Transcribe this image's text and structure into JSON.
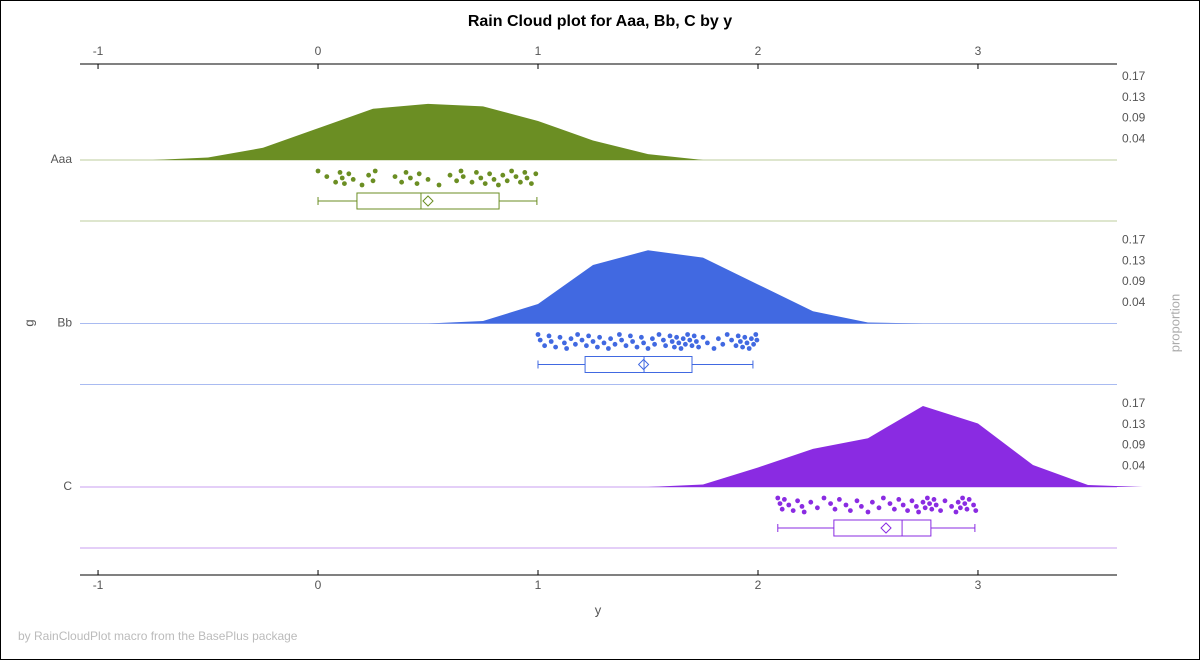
{
  "chart_data": {
    "type": "raincloud",
    "title": "Rain Cloud plot for Aaa, Bb, C by y",
    "xlabel": "y",
    "ylabel": "g",
    "y2label": "proportion",
    "footnote": "by RainCloudPlot macro from the BasePlus package",
    "xlim": [
      -1.082,
      3.632
    ],
    "xticks": [
      -1,
      0,
      1,
      2,
      3
    ],
    "ylim": [
      0,
      0.2
    ],
    "yticks": [
      {
        "value": 0.0425,
        "label": "0.04"
      },
      {
        "value": 0.085,
        "label": "0.09"
      },
      {
        "value": 0.1275,
        "label": "0.13"
      },
      {
        "value": 0.17,
        "label": "0.17"
      }
    ],
    "series": [
      {
        "name": "Aaa",
        "color": "#6b8e23",
        "density_x": [
          -0.75,
          -0.5,
          -0.25,
          0,
          0.25,
          0.5,
          0.75,
          1.0,
          1.25,
          1.5,
          1.75
        ],
        "density_values": [
          0,
          0.005,
          0.025,
          0.065,
          0.105,
          0.115,
          0.11,
          0.08,
          0.04,
          0.012,
          0
        ],
        "points": [
          0.0,
          0.04,
          0.08,
          0.1,
          0.11,
          0.12,
          0.14,
          0.16,
          0.2,
          0.23,
          0.25,
          0.26,
          0.35,
          0.38,
          0.4,
          0.42,
          0.45,
          0.46,
          0.5,
          0.55,
          0.6,
          0.63,
          0.65,
          0.66,
          0.7,
          0.72,
          0.74,
          0.76,
          0.78,
          0.8,
          0.82,
          0.84,
          0.86,
          0.88,
          0.9,
          0.92,
          0.94,
          0.95,
          0.97,
          0.99
        ],
        "box": {
          "min": 0,
          "q1": 0.177,
          "median": 0.468,
          "mean": 0.5,
          "q3": 0.823,
          "max": 0.995
        }
      },
      {
        "name": "Bb",
        "color": "#4169e1",
        "density_x": [
          0.5,
          0.75,
          1.0,
          1.25,
          1.5,
          1.75,
          2.0,
          2.25,
          2.5,
          2.75
        ],
        "density_values": [
          0,
          0.005,
          0.04,
          0.12,
          0.15,
          0.135,
          0.08,
          0.025,
          0.002,
          0
        ],
        "points": [
          1.0,
          1.01,
          1.03,
          1.05,
          1.06,
          1.08,
          1.1,
          1.12,
          1.13,
          1.15,
          1.17,
          1.18,
          1.2,
          1.22,
          1.23,
          1.25,
          1.27,
          1.28,
          1.3,
          1.32,
          1.33,
          1.35,
          1.37,
          1.38,
          1.4,
          1.42,
          1.43,
          1.45,
          1.47,
          1.48,
          1.5,
          1.52,
          1.53,
          1.55,
          1.57,
          1.58,
          1.6,
          1.61,
          1.62,
          1.63,
          1.64,
          1.65,
          1.66,
          1.67,
          1.68,
          1.69,
          1.7,
          1.71,
          1.72,
          1.73,
          1.75,
          1.77,
          1.8,
          1.82,
          1.84,
          1.86,
          1.88,
          1.9,
          1.91,
          1.92,
          1.93,
          1.94,
          1.95,
          1.96,
          1.97,
          1.98,
          1.99,
          1.995
        ],
        "box": {
          "min": 1.0,
          "q1": 1.214,
          "median": 1.482,
          "mean": 1.48,
          "q3": 1.7,
          "max": 1.977
        }
      },
      {
        "name": "C",
        "color": "#8a2be2",
        "density_x": [
          1.5,
          1.75,
          2.0,
          2.25,
          2.5,
          2.75,
          3.0,
          3.25,
          3.5,
          3.75
        ],
        "density_values": [
          0,
          0.005,
          0.04,
          0.078,
          0.1,
          0.166,
          0.13,
          0.045,
          0.004,
          0
        ],
        "points": [
          2.09,
          2.1,
          2.11,
          2.12,
          2.14,
          2.16,
          2.18,
          2.2,
          2.21,
          2.24,
          2.27,
          2.3,
          2.33,
          2.35,
          2.37,
          2.4,
          2.42,
          2.45,
          2.47,
          2.5,
          2.52,
          2.55,
          2.57,
          2.6,
          2.62,
          2.64,
          2.66,
          2.68,
          2.7,
          2.72,
          2.73,
          2.75,
          2.76,
          2.77,
          2.78,
          2.79,
          2.8,
          2.81,
          2.83,
          2.85,
          2.88,
          2.9,
          2.91,
          2.92,
          2.93,
          2.94,
          2.95,
          2.96,
          2.98,
          2.99
        ],
        "box": {
          "min": 2.09,
          "q1": 2.345,
          "median": 2.655,
          "mean": 2.582,
          "q3": 2.786,
          "max": 2.986
        }
      }
    ]
  }
}
